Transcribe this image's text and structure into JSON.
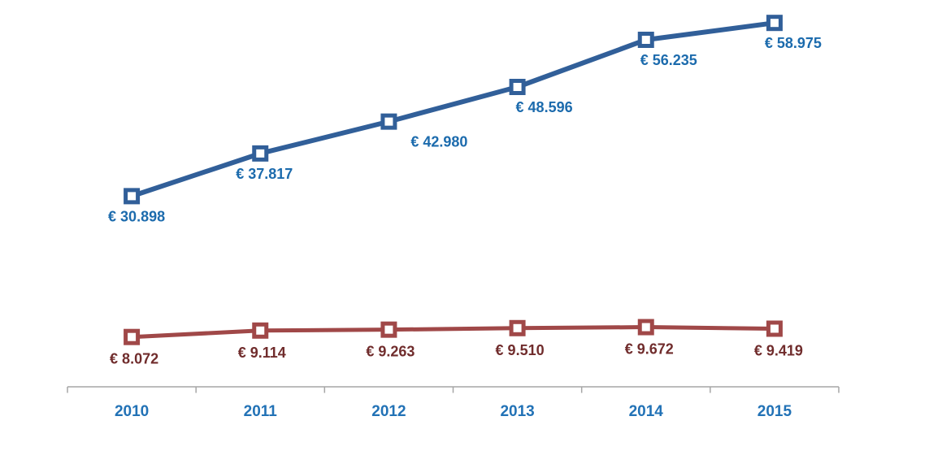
{
  "chart_data": {
    "type": "line",
    "title": "",
    "xlabel": "",
    "ylabel": "",
    "categories": [
      "2010",
      "2011",
      "2012",
      "2013",
      "2014",
      "2015"
    ],
    "series": [
      {
        "name": "series-1",
        "values": [
          30898,
          37817,
          42980,
          48596,
          56235,
          58975
        ],
        "labels": [
          "€ 30.898",
          "€ 37.817",
          "€ 42.980",
          "€ 48.596",
          "€ 56.235",
          "€ 58.975"
        ],
        "line_color": "#315F99",
        "label_color": "#1C6BAD",
        "marker": "square-hollow",
        "line_width": 6
      },
      {
        "name": "series-2",
        "values": [
          8072,
          9114,
          9263,
          9510,
          9672,
          9419
        ],
        "labels": [
          "€ 8.072",
          "€ 9.114",
          "€ 9.263",
          "€ 9.510",
          "€ 9.672",
          "€ 9.419"
        ],
        "line_color": "#A04848",
        "label_color": "#702C2C",
        "marker": "square-hollow",
        "line_width": 5
      }
    ],
    "ylim": [
      0,
      59000
    ],
    "grid": false,
    "legend": "none",
    "x_axis": {
      "color": "#A6A6A6",
      "tick_label_color": "#2272B6",
      "ticks": "outside"
    },
    "label_offsets": {
      "dx": [
        [
          6,
          5,
          62,
          33,
          28,
          23
        ],
        [
          3,
          2,
          2,
          3,
          4,
          5
        ]
      ],
      "dy": [
        31,
        33
      ]
    }
  }
}
